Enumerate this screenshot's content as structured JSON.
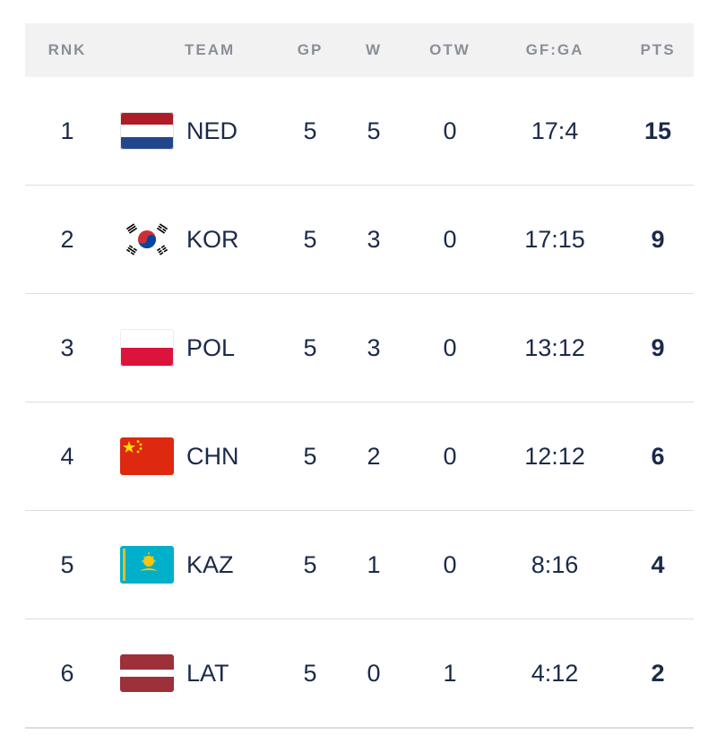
{
  "headers": {
    "rnk": "RNK",
    "team": "TEAM",
    "gp": "GP",
    "w": "W",
    "otw": "OTW",
    "gfga": "GF:GA",
    "pts": "PTS"
  },
  "rows": [
    {
      "rnk": "1",
      "team": "NED",
      "flag_icon": "netherlands-flag",
      "gp": "5",
      "w": "5",
      "otw": "0",
      "gfga": "17:4",
      "pts": "15"
    },
    {
      "rnk": "2",
      "team": "KOR",
      "flag_icon": "south-korea-flag",
      "gp": "5",
      "w": "3",
      "otw": "0",
      "gfga": "17:15",
      "pts": "9"
    },
    {
      "rnk": "3",
      "team": "POL",
      "flag_icon": "poland-flag",
      "gp": "5",
      "w": "3",
      "otw": "0",
      "gfga": "13:12",
      "pts": "9"
    },
    {
      "rnk": "4",
      "team": "CHN",
      "flag_icon": "china-flag",
      "gp": "5",
      "w": "2",
      "otw": "0",
      "gfga": "12:12",
      "pts": "6"
    },
    {
      "rnk": "5",
      "team": "KAZ",
      "flag_icon": "kazakhstan-flag",
      "gp": "5",
      "w": "1",
      "otw": "0",
      "gfga": "8:16",
      "pts": "4"
    },
    {
      "rnk": "6",
      "team": "LAT",
      "flag_icon": "latvia-flag",
      "gp": "5",
      "w": "0",
      "otw": "1",
      "gfga": "4:12",
      "pts": "2"
    }
  ],
  "colors": {
    "text": "#1b2a4a",
    "header_text": "#8a8f98",
    "header_bg": "#f2f2f3",
    "divider": "#dcdde0"
  }
}
